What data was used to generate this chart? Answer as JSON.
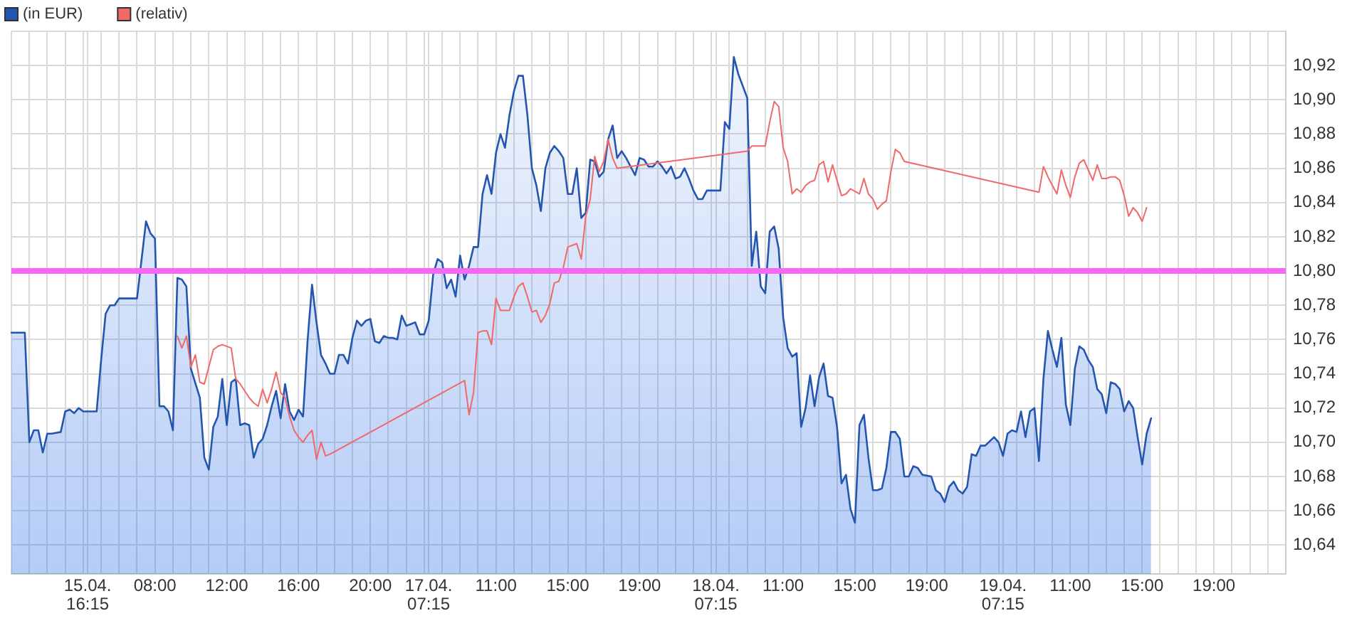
{
  "chart_data": {
    "type": "line",
    "categories": [
      null,
      null,
      null,
      null,
      null,
      null,
      null,
      null,
      null,
      null,
      null,
      null,
      null,
      null,
      null,
      null,
      null,
      "15.04.\n16:15",
      null,
      null,
      null,
      null,
      null,
      null,
      null,
      null,
      null,
      null,
      null,
      null,
      null,
      null,
      "08:00",
      null,
      null,
      null,
      null,
      null,
      null,
      null,
      null,
      null,
      null,
      null,
      null,
      null,
      null,
      null,
      "12:00",
      null,
      null,
      null,
      null,
      null,
      null,
      null,
      null,
      null,
      null,
      null,
      null,
      null,
      null,
      null,
      "16:00",
      null,
      null,
      null,
      null,
      null,
      null,
      null,
      null,
      null,
      null,
      null,
      null,
      null,
      null,
      null,
      "20:00",
      null,
      null,
      null,
      null,
      null,
      null,
      null,
      null,
      null,
      null,
      null,
      null,
      "17.04.\n07:15",
      null,
      null,
      null,
      null,
      null,
      null,
      null,
      null,
      null,
      null,
      null,
      null,
      null,
      null,
      "11:00",
      null,
      null,
      null,
      null,
      null,
      null,
      null,
      null,
      null,
      null,
      null,
      null,
      null,
      null,
      null,
      "15:00",
      null,
      null,
      null,
      null,
      null,
      null,
      null,
      null,
      null,
      null,
      null,
      null,
      null,
      null,
      null,
      "19:00",
      null,
      null,
      null,
      null,
      null,
      null,
      null,
      null,
      null,
      null,
      null,
      null,
      null,
      null,
      null,
      null,
      "18.04.\n07:15",
      null,
      null,
      null,
      null,
      null,
      null,
      null,
      null,
      null,
      null,
      null,
      null,
      null,
      null,
      "11:00",
      null,
      null,
      null,
      null,
      null,
      null,
      null,
      null,
      null,
      null,
      null,
      null,
      null,
      null,
      null,
      "15:00",
      null,
      null,
      null,
      null,
      null,
      null,
      null,
      null,
      null,
      null,
      null,
      null,
      null,
      null,
      null,
      "19:00",
      null,
      null,
      null,
      null,
      null,
      null,
      null,
      null,
      null,
      null,
      null,
      null,
      null,
      null,
      null,
      null,
      "19.04.\n07:15",
      null,
      null,
      null,
      null,
      null,
      null,
      null,
      null,
      null,
      null,
      null,
      null,
      null,
      null,
      "11:00",
      null,
      null,
      null,
      null,
      null,
      null,
      null,
      null,
      null,
      null,
      null,
      null,
      null,
      null,
      null,
      "15:00",
      null,
      null,
      null,
      null,
      null,
      null,
      null,
      null,
      null,
      null,
      null,
      null,
      null,
      null,
      null,
      "19:00",
      null,
      null,
      null,
      null,
      null,
      null,
      null,
      null,
      null,
      null,
      null,
      null,
      null,
      null,
      null,
      null
    ],
    "series": [
      {
        "name": "(in EUR)",
        "type": "area",
        "color": "#2456b0",
        "values": [
          10.764,
          null,
          null,
          10.764,
          10.7,
          10.707,
          10.707,
          10.694,
          10.705,
          10.705,
          null,
          10.706,
          10.718,
          10.719,
          10.717,
          10.72,
          10.718,
          null,
          null,
          10.718,
          10.748,
          10.775,
          10.78,
          10.78,
          10.784,
          null,
          null,
          null,
          10.784,
          null,
          10.829,
          10.822,
          10.819,
          10.721,
          10.721,
          10.718,
          10.707,
          10.796,
          10.795,
          10.791,
          10.743,
          null,
          10.726,
          10.691,
          10.684,
          10.709,
          10.715,
          10.737,
          10.71,
          10.735,
          10.737,
          10.71,
          10.711,
          10.71,
          10.691,
          10.699,
          10.702,
          10.71,
          10.721,
          10.73,
          10.714,
          10.734,
          10.718,
          10.713,
          10.719,
          10.715,
          10.759,
          10.792,
          10.77,
          10.751,
          10.746,
          10.74,
          10.74,
          10.751,
          10.751,
          10.746,
          10.761,
          10.771,
          10.768,
          10.771,
          10.772,
          10.759,
          10.758,
          10.762,
          10.761,
          10.761,
          10.76,
          10.774,
          10.768,
          10.769,
          10.77,
          10.763,
          10.763,
          10.771,
          10.798,
          10.807,
          10.805,
          10.79,
          10.795,
          10.785,
          10.809,
          10.795,
          10.803,
          10.814,
          10.814,
          10.845,
          10.856,
          10.845,
          10.869,
          10.88,
          10.872,
          10.891,
          10.905,
          10.914,
          10.914,
          10.891,
          10.86,
          10.85,
          10.835,
          10.86,
          10.869,
          10.873,
          10.87,
          10.866,
          10.845,
          10.845,
          10.86,
          10.831,
          10.834,
          10.865,
          10.864,
          10.855,
          10.858,
          10.877,
          10.885,
          10.866,
          10.87,
          10.866,
          null,
          10.856,
          10.866,
          10.865,
          10.861,
          10.861,
          10.864,
          10.861,
          10.857,
          10.861,
          10.854,
          10.855,
          10.86,
          10.854,
          10.847,
          10.842,
          10.842,
          10.847,
          null,
          null,
          10.847,
          10.887,
          10.883,
          10.925,
          10.915,
          10.908,
          10.901,
          10.803,
          10.823,
          10.791,
          10.787,
          10.823,
          10.826,
          10.813,
          10.773,
          10.755,
          10.75,
          10.752,
          10.709,
          10.72,
          10.739,
          10.721,
          10.738,
          10.746,
          10.727,
          10.726,
          10.709,
          10.676,
          10.681,
          10.661,
          10.653,
          10.71,
          10.716,
          10.691,
          10.672,
          10.672,
          10.673,
          10.685,
          10.706,
          10.706,
          10.702,
          10.68,
          10.68,
          10.686,
          10.685,
          10.681,
          null,
          10.68,
          10.672,
          10.67,
          10.665,
          10.674,
          10.677,
          10.672,
          10.67,
          10.674,
          10.693,
          10.692,
          10.698,
          10.698,
          null,
          10.703,
          10.7,
          10.692,
          10.705,
          10.707,
          10.706,
          10.718,
          10.703,
          10.718,
          10.72,
          10.689,
          10.737,
          10.765,
          10.754,
          10.744,
          10.761,
          10.722,
          10.71,
          10.743,
          10.756,
          10.754,
          10.748,
          10.744,
          10.731,
          10.728,
          10.717,
          10.735,
          10.734,
          10.731,
          10.718,
          10.724,
          10.72,
          10.703,
          10.687,
          10.705,
          10.714,
          null,
          null,
          null,
          null,
          null,
          null,
          null,
          null,
          null,
          null,
          null,
          null,
          null,
          null,
          null,
          null,
          null,
          null,
          null,
          null,
          null,
          null,
          null,
          null,
          null,
          null,
          null,
          null,
          null,
          null
        ]
      },
      {
        "name": "(relativ)",
        "type": "line",
        "color": "#f06868",
        "values": [
          null,
          null,
          null,
          null,
          null,
          null,
          null,
          null,
          null,
          null,
          null,
          null,
          null,
          null,
          null,
          null,
          null,
          null,
          null,
          null,
          null,
          null,
          null,
          null,
          null,
          null,
          null,
          null,
          null,
          null,
          null,
          null,
          null,
          null,
          null,
          null,
          null,
          10.762,
          10.755,
          10.762,
          10.744,
          10.751,
          10.735,
          10.734,
          10.744,
          10.754,
          10.756,
          10.757,
          null,
          10.755,
          10.737,
          10.734,
          null,
          10.726,
          10.723,
          10.721,
          10.731,
          10.723,
          10.731,
          10.741,
          10.729,
          10.726,
          10.715,
          10.707,
          10.703,
          10.7,
          10.704,
          10.707,
          10.69,
          10.7,
          10.692,
          10.693,
          null,
          null,
          null,
          null,
          null,
          null,
          null,
          null,
          null,
          null,
          null,
          null,
          null,
          null,
          null,
          null,
          null,
          null,
          null,
          null,
          null,
          null,
          null,
          null,
          null,
          null,
          null,
          null,
          null,
          10.736,
          10.716,
          10.729,
          10.764,
          10.765,
          10.765,
          10.757,
          10.784,
          10.777,
          null,
          10.777,
          10.785,
          10.791,
          10.793,
          10.785,
          10.776,
          10.777,
          10.77,
          10.774,
          10.781,
          10.793,
          10.794,
          10.802,
          10.814,
          10.815,
          10.816,
          10.807,
          10.832,
          10.842,
          10.867,
          10.858,
          10.864,
          10.877,
          10.866,
          10.86,
          null,
          null,
          null,
          null,
          null,
          null,
          null,
          null,
          null,
          null,
          null,
          null,
          null,
          null,
          null,
          null,
          null,
          null,
          null,
          null,
          null,
          null,
          null,
          null,
          null,
          null,
          null,
          null,
          10.87,
          10.873,
          10.873,
          null,
          10.873,
          10.887,
          10.899,
          10.896,
          10.872,
          10.864,
          10.845,
          10.848,
          10.846,
          10.85,
          10.852,
          10.853,
          10.862,
          10.864,
          10.852,
          10.862,
          10.853,
          10.844,
          10.845,
          10.848,
          null,
          10.845,
          10.854,
          10.845,
          10.842,
          10.836,
          10.839,
          10.841,
          10.858,
          10.871,
          10.869,
          10.864,
          null,
          null,
          null,
          null,
          null,
          null,
          null,
          null,
          null,
          null,
          null,
          null,
          null,
          null,
          null,
          null,
          null,
          null,
          null,
          null,
          null,
          null,
          null,
          null,
          null,
          null,
          null,
          null,
          null,
          10.846,
          10.861,
          10.855,
          10.85,
          10.845,
          10.859,
          10.85,
          10.843,
          10.855,
          10.863,
          10.865,
          10.859,
          10.853,
          10.862,
          10.854,
          10.854,
          10.855,
          10.855,
          10.853,
          10.844,
          10.832,
          10.837,
          10.834,
          10.829,
          10.837,
          null,
          null,
          null,
          null,
          null,
          null,
          null,
          null,
          null,
          null,
          null,
          null,
          null,
          null,
          null,
          null,
          null,
          null,
          null,
          null,
          null,
          null,
          null,
          null,
          null,
          null,
          null,
          null,
          null,
          null,
          null
        ]
      }
    ],
    "ylim": [
      10.623,
      10.94
    ],
    "yticks": [
      {
        "value": 10.64,
        "label": "10,64"
      },
      {
        "value": 10.66,
        "label": "10,66"
      },
      {
        "value": 10.68,
        "label": "10,68"
      },
      {
        "value": 10.7,
        "label": "10,70"
      },
      {
        "value": 10.72,
        "label": "10,72"
      },
      {
        "value": 10.74,
        "label": "10,74"
      },
      {
        "value": 10.76,
        "label": "10,76"
      },
      {
        "value": 10.78,
        "label": "10,78"
      },
      {
        "value": 10.8,
        "label": "10,80"
      },
      {
        "value": 10.82,
        "label": "10,82"
      },
      {
        "value": 10.84,
        "label": "10,84"
      },
      {
        "value": 10.86,
        "label": "10,86"
      },
      {
        "value": 10.88,
        "label": "10,88"
      },
      {
        "value": 10.9,
        "label": "10,90"
      },
      {
        "value": 10.92,
        "label": "10,92"
      },
      {
        "value": 10.94,
        "label": null
      }
    ],
    "grid": true,
    "legend": "top left",
    "ref_lines": [
      {
        "axis": "y",
        "value": 10.8,
        "color": "#f866f4"
      }
    ]
  }
}
